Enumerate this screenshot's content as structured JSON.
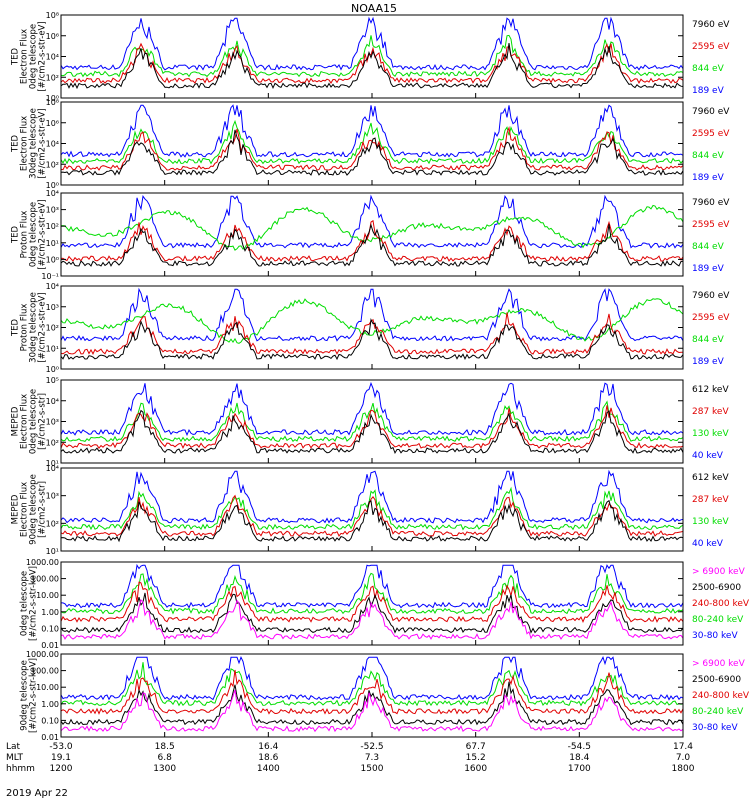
{
  "title": "NOAA15",
  "date_label": "2019 Apr 22",
  "colors": {
    "black": "#000000",
    "red": "#e00000",
    "green": "#00dd00",
    "blue": "#0000ff",
    "magenta": "#ff00ff"
  },
  "chart_data": [
    {
      "type": "line",
      "ylabel": [
        "TED",
        "Electron Flux",
        "0deg telescope",
        "[#/cm2-s-str-eV]"
      ],
      "yscale": "log",
      "yticks": [
        "10⁰",
        "10²",
        "10⁴",
        "10⁶",
        "10⁸"
      ],
      "series": [
        {
          "name": "7960 eV"
        },
        {
          "name": "2595 eV"
        },
        {
          "name": "844 eV"
        },
        {
          "name": "189 eV"
        }
      ]
    },
    {
      "type": "line",
      "ylabel": [
        "TED",
        "Electron Flux",
        "30deg telescope",
        "[#/cm2-s-str-eV]"
      ],
      "yscale": "log",
      "yticks": [
        "10⁰",
        "10²",
        "10⁴",
        "10⁶",
        "10⁸"
      ],
      "series": [
        {
          "name": "7960 eV"
        },
        {
          "name": "2595 eV"
        },
        {
          "name": "844 eV"
        },
        {
          "name": "189 eV"
        }
      ]
    },
    {
      "type": "line",
      "ylabel": [
        "TED",
        "Proton Flux",
        "0deg telescope",
        "[#/cm2-s-str-eV]"
      ],
      "yscale": "log",
      "yticks": [
        "10⁻¹",
        "10⁰",
        "10¹",
        "10²",
        "10³",
        "10⁴"
      ],
      "series": [
        {
          "name": "7960 eV"
        },
        {
          "name": "2595 eV"
        },
        {
          "name": "844 eV"
        },
        {
          "name": "189 eV"
        }
      ]
    },
    {
      "type": "line",
      "ylabel": [
        "TED",
        "Proton Flux",
        "30deg telescope",
        "[#/cm2-s-str-eV]"
      ],
      "yscale": "log",
      "yticks": [
        "10⁰",
        "10¹",
        "10²",
        "10³",
        "10⁴"
      ],
      "series": [
        {
          "name": "7960 eV"
        },
        {
          "name": "2595 eV"
        },
        {
          "name": "844 eV"
        },
        {
          "name": "189 eV"
        }
      ]
    },
    {
      "type": "line",
      "ylabel": [
        "MEPED",
        "Electron Flux",
        "0deg telescope",
        "[#/cm2-s-str]"
      ],
      "yscale": "log",
      "yticks": [
        "10¹",
        "10²",
        "10³",
        "10⁴",
        "10⁵"
      ],
      "series": [
        {
          "name": "612 keV"
        },
        {
          "name": "287 keV"
        },
        {
          "name": "130 keV"
        },
        {
          "name": "40 keV"
        }
      ]
    },
    {
      "type": "line",
      "ylabel": [
        "MEPED",
        "Electron Flux",
        "90deg telescope",
        "[#/cm2-s-str]"
      ],
      "yscale": "log",
      "yticks": [
        "10¹",
        "10²",
        "10³",
        "10⁴"
      ],
      "series": [
        {
          "name": "612 keV"
        },
        {
          "name": "287 keV"
        },
        {
          "name": "130 keV"
        },
        {
          "name": "40 keV"
        }
      ]
    },
    {
      "type": "line",
      "ylabel": [
        "0deg telescope",
        "[#/cm2-s-str-keV]"
      ],
      "yscale": "log",
      "yticks": [
        "0.01",
        "0.10",
        "1.00",
        "10.00",
        "100.00",
        "1000.00"
      ],
      "series": [
        {
          "name": "> 6900 keV"
        },
        {
          "name": "2500-6900"
        },
        {
          "name": "240-800 keV"
        },
        {
          "name": "80-240 keV"
        },
        {
          "name": "30-80 keV"
        }
      ]
    },
    {
      "type": "line",
      "ylabel": [
        "90deg telescope",
        "[#/cm2-s-str-keV]"
      ],
      "yscale": "log",
      "yticks": [
        "0.01",
        "0.10",
        "1.00",
        "10.00",
        "100.00",
        "1000.00"
      ],
      "series": [
        {
          "name": "> 6900 keV"
        },
        {
          "name": "2500-6900"
        },
        {
          "name": "240-800 keV"
        },
        {
          "name": "80-240 keV"
        },
        {
          "name": "30-80 keV"
        }
      ]
    }
  ],
  "xaxis": {
    "row_labels": [
      "Lat",
      "MLT",
      "hhmm"
    ],
    "ticks": [
      {
        "lat": "-53.0",
        "mlt": "19.1",
        "hhmm": "1200"
      },
      {
        "lat": "18.5",
        "mlt": "6.8",
        "hhmm": "1300"
      },
      {
        "lat": "16.4",
        "mlt": "18.6",
        "hhmm": "1400"
      },
      {
        "lat": "-52.5",
        "mlt": "7.3",
        "hhmm": "1500"
      },
      {
        "lat": "67.7",
        "mlt": "15.2",
        "hhmm": "1600"
      },
      {
        "lat": "-54.5",
        "mlt": "18.4",
        "hhmm": "1700"
      },
      {
        "lat": "17.4",
        "mlt": "7.0",
        "hhmm": "1800"
      }
    ]
  }
}
